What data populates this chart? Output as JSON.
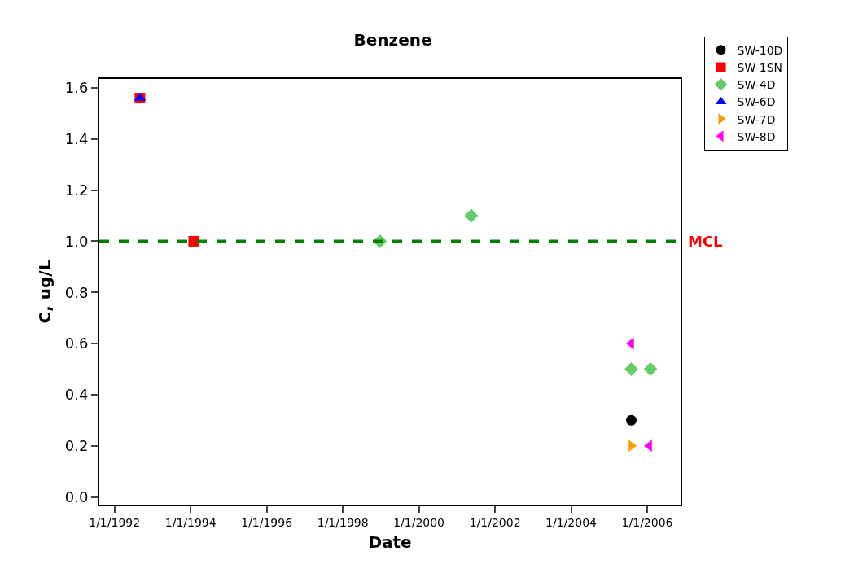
{
  "chart_data": {
    "type": "scatter",
    "title": "Benzene",
    "xlabel": "Date",
    "ylabel": "C, ug/L",
    "xlim": [
      "1991-08-08",
      "2006-11-17"
    ],
    "xticks": [
      {
        "value": "1992-01-01",
        "label": "1/1/1992"
      },
      {
        "value": "1994-01-01",
        "label": "1/1/1994"
      },
      {
        "value": "1996-01-01",
        "label": "1/1/1996"
      },
      {
        "value": "1998-01-01",
        "label": "1/1/1998"
      },
      {
        "value": "2000-01-01",
        "label": "1/1/2000"
      },
      {
        "value": "2002-01-01",
        "label": "1/1/2002"
      },
      {
        "value": "2004-01-01",
        "label": "1/1/2004"
      },
      {
        "value": "2006-01-01",
        "label": "1/1/2006"
      }
    ],
    "ylim": [
      -0.03,
      1.635
    ],
    "yticks": [
      {
        "value": 0,
        "label": "0.0"
      },
      {
        "value": 0.2,
        "label": "0.2"
      },
      {
        "value": 0.4,
        "label": "0.4"
      },
      {
        "value": 0.6,
        "label": "0.6"
      },
      {
        "value": 0.8,
        "label": "0.8"
      },
      {
        "value": 1,
        "label": "1.0"
      },
      {
        "value": 1.2,
        "label": "1.2"
      },
      {
        "value": 1.4,
        "label": "1.4"
      },
      {
        "value": 1.6,
        "label": "1.6"
      }
    ],
    "grid": false,
    "legend": "top right",
    "series": [
      {
        "name": "SW-10D",
        "color": "#000000",
        "marker": "circle",
        "x": [
          "2005-08-01"
        ],
        "values": [
          0.3
        ]
      },
      {
        "name": "SW-1SN",
        "color": "#ff0000",
        "marker": "square",
        "x": [
          "1992-09-01",
          "1994-01-30"
        ],
        "values": [
          1.56,
          1.0
        ]
      },
      {
        "name": "SW-4D",
        "color": "#66cc66",
        "marker": "diamond",
        "x": [
          "1998-12-23",
          "2001-05-18",
          "2005-08-01",
          "2006-02-01"
        ],
        "values": [
          1.0,
          1.1,
          0.5,
          0.5
        ]
      },
      {
        "name": "SW-6D",
        "color": "#0000ff",
        "marker": "triangle",
        "x": [
          "1992-09-01"
        ],
        "values": [
          1.56
        ]
      },
      {
        "name": "SW-7D",
        "color": "#ff9900",
        "marker": "triangle-right",
        "x": [
          "2005-08-01"
        ],
        "values": [
          0.2
        ]
      },
      {
        "name": "SW-8D",
        "color": "#ff00ff",
        "marker": "triangle-left",
        "x": [
          "2005-08-01",
          "2006-01-20"
        ],
        "values": [
          0.6,
          0.2
        ]
      }
    ],
    "ref_lines": [
      {
        "axis": "y",
        "value": 1,
        "label": "MCL",
        "color": "#008000",
        "line_style": "dashed"
      }
    ]
  }
}
